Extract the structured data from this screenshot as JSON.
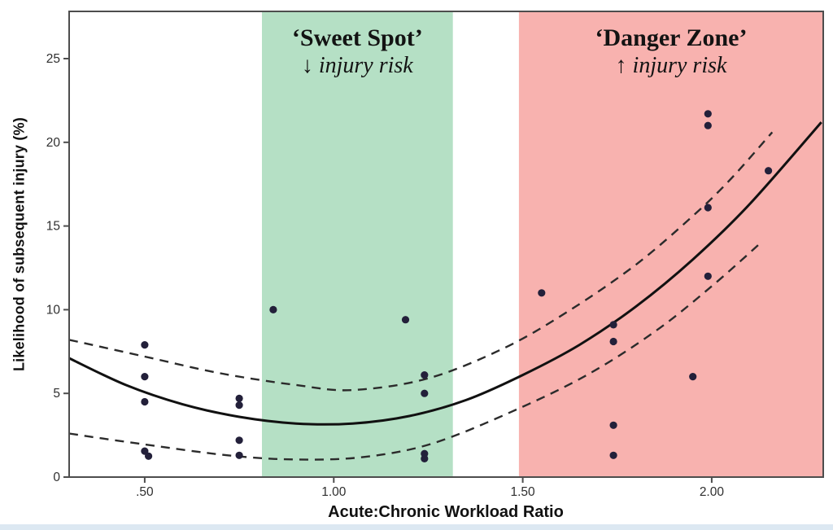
{
  "page": {
    "background": "#ffffff",
    "bottom_strip_color": "#dce8f2"
  },
  "chart_data": {
    "type": "scatter",
    "title": "",
    "xlabel": "Acute:Chronic Workload Ratio",
    "ylabel": "Likelihood of subsequent injury (%)",
    "xlim": [
      0.3,
      2.295
    ],
    "ylim": [
      0,
      27.82
    ],
    "grid": false,
    "legend": "none",
    "x_ticks": [
      {
        "v": 0.5,
        "label": ".50"
      },
      {
        "v": 1.0,
        "label": "1.00"
      },
      {
        "v": 1.5,
        "label": "1.50"
      },
      {
        "v": 2.0,
        "label": "2.00"
      }
    ],
    "y_ticks": [
      {
        "v": 0,
        "label": "0"
      },
      {
        "v": 5,
        "label": "5"
      },
      {
        "v": 10,
        "label": "10"
      },
      {
        "v": 15,
        "label": "15"
      },
      {
        "v": 20,
        "label": "20"
      },
      {
        "v": 25,
        "label": "25"
      }
    ],
    "zones": [
      {
        "name": "sweet-spot",
        "label": "‘Sweet Spot’",
        "sublabel": "↓ injury risk",
        "x_start": 0.81,
        "x_end": 1.315,
        "color": "#b5e0c5"
      },
      {
        "name": "danger-zone",
        "label": "‘Danger Zone’",
        "sublabel": "↑ injury risk",
        "x_start": 1.49,
        "x_end": 2.295,
        "color": "#f8b2af"
      }
    ],
    "series": [
      {
        "name": "observed injury likelihood",
        "points": [
          [
            0.5,
            7.9
          ],
          [
            0.5,
            6.0
          ],
          [
            0.5,
            4.5
          ],
          [
            0.5,
            1.55
          ],
          [
            0.51,
            1.25
          ],
          [
            0.75,
            4.7
          ],
          [
            0.75,
            4.3
          ],
          [
            0.75,
            2.2
          ],
          [
            0.75,
            1.3
          ],
          [
            0.84,
            10.0
          ],
          [
            1.19,
            9.4
          ],
          [
            1.24,
            6.1
          ],
          [
            1.24,
            5.0
          ],
          [
            1.24,
            1.4
          ],
          [
            1.24,
            1.1
          ],
          [
            1.55,
            11.0
          ],
          [
            1.74,
            9.1
          ],
          [
            1.74,
            8.1
          ],
          [
            1.74,
            3.1
          ],
          [
            1.74,
            1.3
          ],
          [
            1.95,
            6.0
          ],
          [
            1.99,
            21.7
          ],
          [
            1.99,
            21.0
          ],
          [
            1.99,
            16.1
          ],
          [
            1.99,
            12.0
          ],
          [
            2.15,
            18.3
          ]
        ]
      }
    ],
    "curves": [
      {
        "name": "fitted injury-risk curve",
        "style": "solid",
        "points": [
          [
            0.3,
            7.1
          ],
          [
            0.45,
            5.5
          ],
          [
            0.6,
            4.35
          ],
          [
            0.75,
            3.6
          ],
          [
            0.9,
            3.2
          ],
          [
            1.05,
            3.2
          ],
          [
            1.2,
            3.65
          ],
          [
            1.35,
            4.6
          ],
          [
            1.5,
            6.1
          ],
          [
            1.65,
            7.9
          ],
          [
            1.8,
            10.2
          ],
          [
            1.95,
            13.0
          ],
          [
            2.1,
            16.3
          ],
          [
            2.29,
            21.2
          ]
        ]
      },
      {
        "name": "upper confidence band",
        "style": "dashed",
        "points": [
          [
            0.3,
            8.2
          ],
          [
            0.5,
            7.2
          ],
          [
            0.7,
            6.2
          ],
          [
            0.9,
            5.5
          ],
          [
            1.05,
            5.2
          ],
          [
            1.25,
            5.9
          ],
          [
            1.45,
            7.7
          ],
          [
            1.62,
            9.9
          ],
          [
            1.8,
            12.7
          ],
          [
            1.95,
            15.6
          ],
          [
            2.05,
            17.8
          ],
          [
            2.16,
            20.6
          ]
        ]
      },
      {
        "name": "lower confidence band",
        "style": "dashed",
        "points": [
          [
            0.3,
            2.6
          ],
          [
            0.5,
            1.95
          ],
          [
            0.72,
            1.3
          ],
          [
            0.9,
            1.05
          ],
          [
            1.08,
            1.2
          ],
          [
            1.26,
            2.0
          ],
          [
            1.47,
            3.9
          ],
          [
            1.67,
            6.1
          ],
          [
            1.85,
            8.7
          ],
          [
            2.0,
            11.4
          ],
          [
            2.13,
            14.0
          ]
        ]
      }
    ],
    "colors": {
      "sweet_zone": "#b5e0c5",
      "danger_zone": "#f8b2af",
      "point": "#23203a",
      "fit_line": "#111111",
      "ci_line": "#2b2b2b",
      "frame": "#4d4d4d",
      "tick_text": "#2f2f2f",
      "axis_title": "#111111",
      "zone_text": "#131313"
    }
  }
}
